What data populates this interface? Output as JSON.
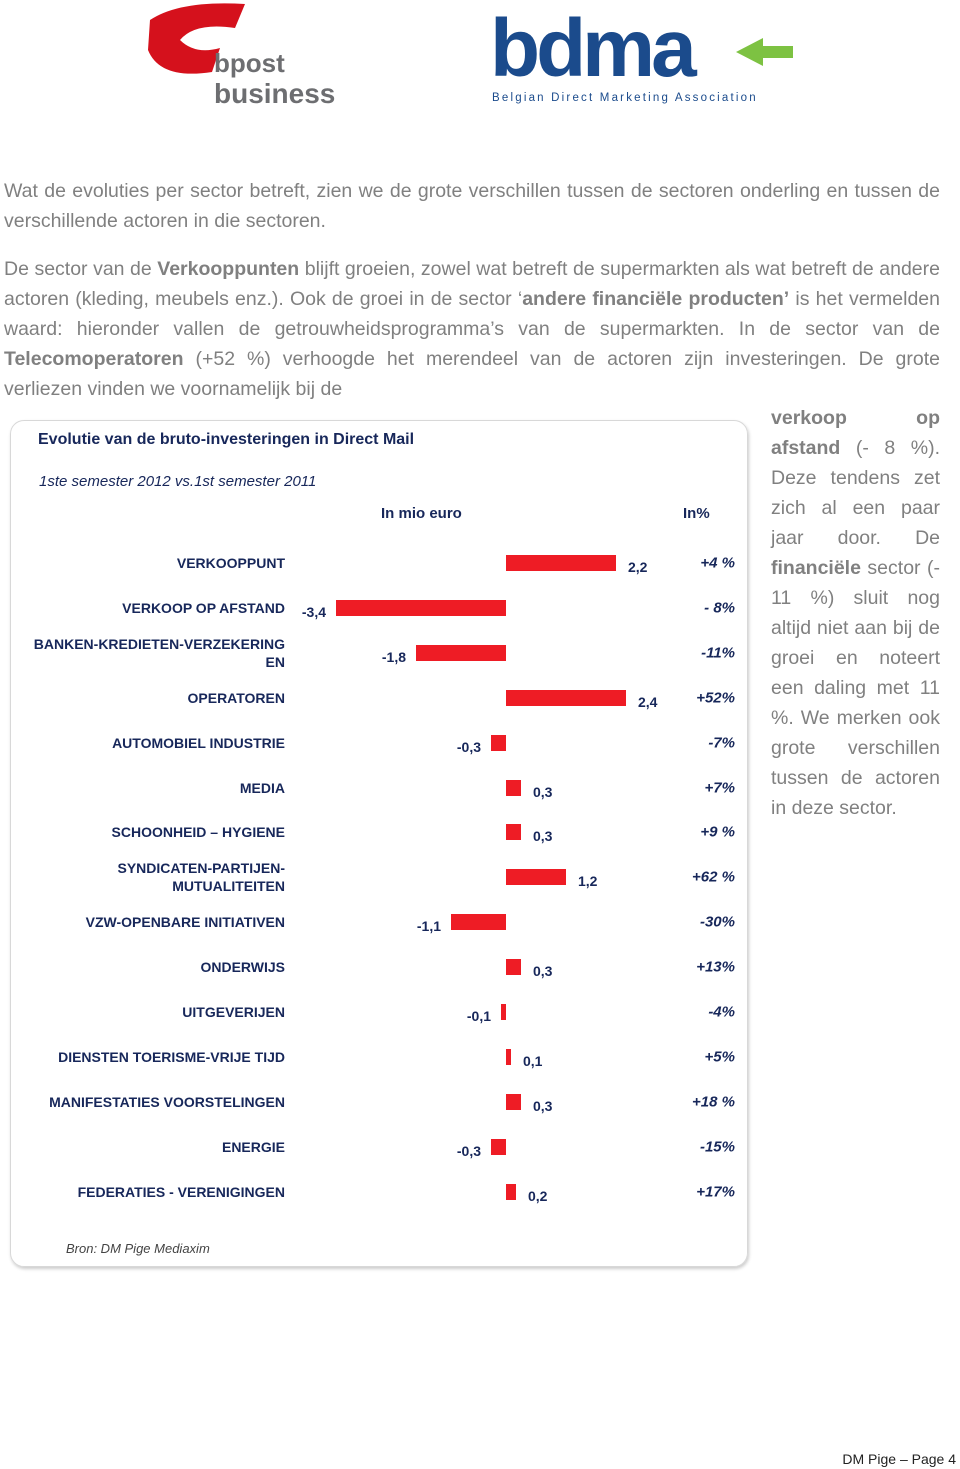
{
  "header": {
    "left_logo": [
      "bpost",
      "business"
    ],
    "right_logo": {
      "text": "bdma",
      "tagline": "Belgian Direct Marketing Association"
    }
  },
  "paragraphs": [
    {
      "runs": [
        {
          "text": "Wat de evoluties per sector betreft, zien we de grote verschillen tussen de sectoren onderling en tussen de verschillende actoren in die sectoren.",
          "bold": false
        }
      ]
    },
    {
      "runs": [
        {
          "text": "De sector van de ",
          "bold": false
        },
        {
          "text": "Verkooppunten",
          "bold": true
        },
        {
          "text": " blijft groeien, zowel wat betreft de supermarkten als wat betreft de andere actoren (kleding, meubels enz.). Ook de groei in de sector ‘",
          "bold": false
        },
        {
          "text": "andere financiële producten’",
          "bold": true
        },
        {
          "text": " is het vermelden waard: hieronder vallen de getrouwheidsprogramma’s van de supermarkten. In de sector van de ",
          "bold": false
        },
        {
          "text": "Telecomoperatoren",
          "bold": true
        },
        {
          "text": " (+52 %) verhoogde het merendeel van de actoren zijn investeringen. De grote verliezen vinden we voornamelijk bij de",
          "bold": false
        }
      ]
    },
    {
      "runs": [
        {
          "text": "verkoop op afstand",
          "bold": true
        },
        {
          "text": " (- 8 %). Deze tendens zet zich al een paar jaar door. De ",
          "bold": false
        },
        {
          "text": "financiële",
          "bold": true
        },
        {
          "text": " sector (- 11 %) sluit nog altijd niet aan bij de groei en noteert een daling met 11 %. We merken ook grote verschillen tussen de actoren in deze sector.",
          "bold": false
        }
      ]
    }
  ],
  "chart_data": {
    "type": "bar",
    "title": "Evolutie van de bruto-investeringen in Direct Mail",
    "subtitle": "1ste semester 2012 vs.1st semester 2011",
    "value_header": "In mio euro",
    "percent_header": "In%",
    "categories": [
      "VERKOOPPUNT",
      "VERKOOP OP AFSTAND",
      "BANKEN-KREDIETEN-VERZEKERING\nEN",
      "OPERATOREN",
      "AUTOMOBIEL INDUSTRIE",
      "MEDIA",
      "SCHOONHEID – HYGIENE",
      "SYNDICATEN-PARTIJEN-\nMUTUALITEITEN",
      "VZW-OPENBARE INITIATIVEN",
      "ONDERWIJS",
      "UITGEVERIJEN",
      "DIENSTEN TOERISME-VRIJE TIJD",
      "MANIFESTATIES VOORSTELINGEN",
      "ENERGIE",
      "FEDERATIES - VERENIGINGEN"
    ],
    "values": [
      2.2,
      -3.4,
      -1.8,
      2.4,
      -0.3,
      0.3,
      0.3,
      1.2,
      -1.1,
      0.3,
      -0.1,
      0.1,
      0.3,
      -0.3,
      0.2
    ],
    "value_labels": [
      "2,2",
      "-3,4",
      "-1,8",
      "2,4",
      "-0,3",
      "0,3",
      "0,3",
      "1,2",
      "-1,1",
      "0,3",
      "-0,1",
      "0,1",
      "0,3",
      "-0,3",
      "0,2"
    ],
    "percent_labels": [
      "+4 %",
      "- 8%",
      "-11%",
      "+52%",
      "-7%",
      "+7%",
      "+9 %",
      "+62 %",
      "-30%",
      "+13%",
      "-4%",
      "+5%",
      "+18 %",
      "-15%",
      "+17%"
    ],
    "color": "#ee1c25",
    "source": "Bron: DM Pige Mediaxim"
  },
  "footer": "DM Pige – Page 4"
}
